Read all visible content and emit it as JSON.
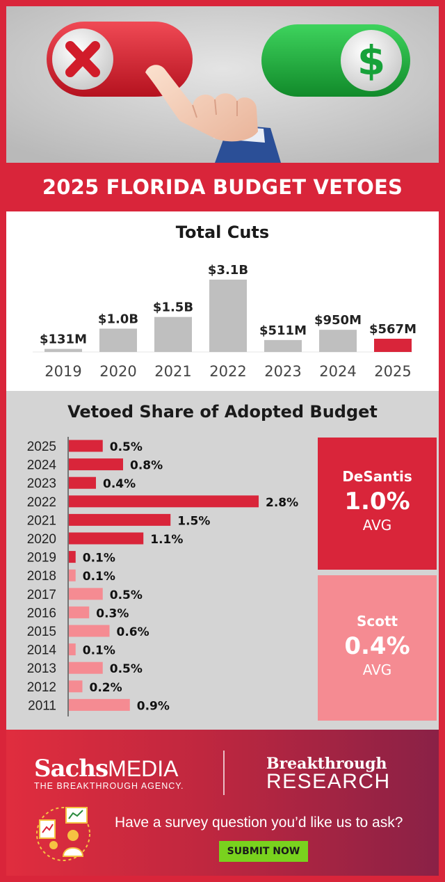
{
  "title": "2025 FLORIDA BUDGET VETOES",
  "colors": {
    "accent": "#d9253a",
    "light_red": "#f58b92",
    "bar_gray": "#bfbfbf",
    "panel_gray": "#d4d4d4",
    "button_green": "#79d21e"
  },
  "chart_data": [
    {
      "type": "bar",
      "title": "Total Cuts",
      "categories": [
        "2019",
        "2020",
        "2021",
        "2022",
        "2023",
        "2024",
        "2025"
      ],
      "values": [
        0.131,
        1.0,
        1.5,
        3.1,
        0.511,
        0.95,
        0.567
      ],
      "value_labels": [
        "$131M",
        "$1.0B",
        "$1.5B",
        "$3.1B",
        "$511M",
        "$950M",
        "$567M"
      ],
      "unit": "billions of dollars",
      "highlight": "2025",
      "colors": [
        "#bfbfbf",
        "#bfbfbf",
        "#bfbfbf",
        "#bfbfbf",
        "#bfbfbf",
        "#bfbfbf",
        "#d9253a"
      ],
      "grid": false
    },
    {
      "type": "bar",
      "orientation": "horizontal",
      "title": "Vetoed Share of Adopted Budget",
      "categories": [
        "2025",
        "2024",
        "2023",
        "2022",
        "2021",
        "2020",
        "2019",
        "2018",
        "2017",
        "2016",
        "2015",
        "2014",
        "2013",
        "2012",
        "2011"
      ],
      "values": [
        0.5,
        0.8,
        0.4,
        2.8,
        1.5,
        1.1,
        0.1,
        0.1,
        0.5,
        0.3,
        0.6,
        0.1,
        0.5,
        0.2,
        0.9
      ],
      "value_labels": [
        "0.5%",
        "0.8%",
        "0.4%",
        "2.8%",
        "1.5%",
        "1.1%",
        "0.1%",
        "0.1%",
        "0.5%",
        "0.3%",
        "0.6%",
        "0.1%",
        "0.5%",
        "0.2%",
        "0.9%"
      ],
      "unit": "percent",
      "groups": [
        {
          "name": "DeSantis",
          "years": [
            "2019",
            "2020",
            "2021",
            "2022",
            "2023",
            "2024",
            "2025"
          ],
          "color": "#d9253a"
        },
        {
          "name": "Scott",
          "years": [
            "2011",
            "2012",
            "2013",
            "2014",
            "2015",
            "2016",
            "2017",
            "2018"
          ],
          "color": "#f58b92"
        }
      ],
      "grid": false
    }
  ],
  "averages": [
    {
      "name": "DeSantis",
      "value": "1.0%",
      "label": "AVG",
      "color": "#d9253a"
    },
    {
      "name": "Scott",
      "value": "0.4%",
      "label": "AVG",
      "color": "#f58b92"
    }
  ],
  "footer": {
    "logo1_main": "Sachs",
    "logo1_sub": "MEDIA",
    "logo1_tagline": "THE BREAKTHROUGH AGENCY.",
    "logo2_line1": "Breakthrough",
    "logo2_line2": "RESEARCH",
    "survey_prompt": "Have a survey question you’d like us to ask?",
    "button_label": "SUBMIT NOW"
  },
  "icons": [
    "x-toggle-icon",
    "dollar-toggle-icon",
    "pointing-hand-icon",
    "survey-people-icon"
  ]
}
